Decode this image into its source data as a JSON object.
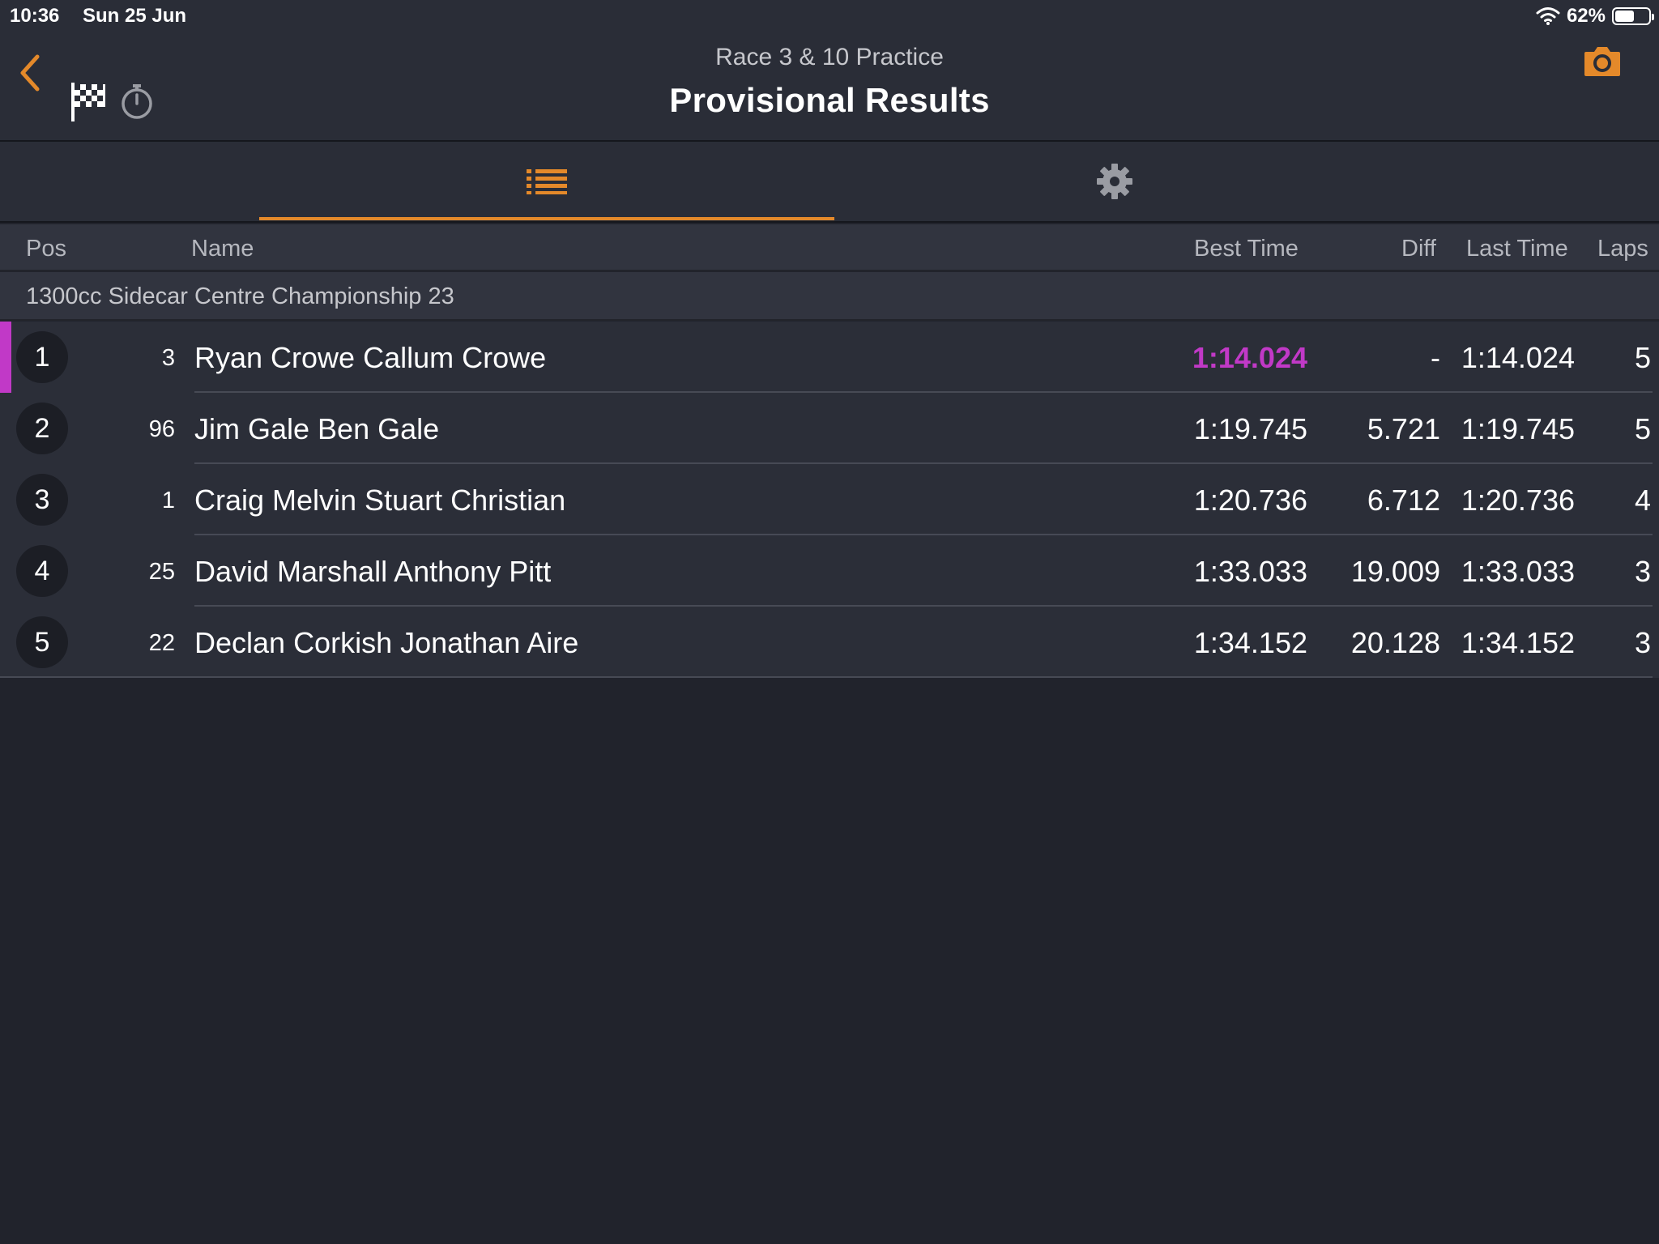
{
  "status": {
    "time": "10:36",
    "date": "Sun 25 Jun",
    "battery": "62%",
    "battery_level": 0.62
  },
  "nav": {
    "subtitle": "Race 3 & 10 Practice",
    "title": "Provisional Results"
  },
  "icons": {
    "back": "chevron-left-icon",
    "flag": "checkered-flag-icon",
    "stopwatch": "stopwatch-icon",
    "camera": "camera-icon",
    "list": "list-icon",
    "settings": "gear-icon"
  },
  "colors": {
    "accent": "#e4892a",
    "fastest": "#c139c7",
    "background": "#21232c",
    "panel": "#2a2d37"
  },
  "table": {
    "headers": {
      "pos": "Pos",
      "name": "Name",
      "best": "Best Time",
      "diff": "Diff",
      "last": "Last Time",
      "laps": "Laps"
    },
    "group": "1300cc Sidecar Centre Championship 23",
    "rows": [
      {
        "pos": "1",
        "number": "3",
        "name": "Ryan Crowe Callum Crowe",
        "best": "1:14.024",
        "diff": "-",
        "last": "1:14.024",
        "laps": "5"
      },
      {
        "pos": "2",
        "number": "96",
        "name": "Jim Gale Ben Gale",
        "best": "1:19.745",
        "diff": "5.721",
        "last": "1:19.745",
        "laps": "5"
      },
      {
        "pos": "3",
        "number": "1",
        "name": "Craig Melvin Stuart Christian",
        "best": "1:20.736",
        "diff": "6.712",
        "last": "1:20.736",
        "laps": "4"
      },
      {
        "pos": "4",
        "number": "25",
        "name": "David Marshall Anthony Pitt",
        "best": "1:33.033",
        "diff": "19.009",
        "last": "1:33.033",
        "laps": "3"
      },
      {
        "pos": "5",
        "number": "22",
        "name": "Declan Corkish Jonathan Aire",
        "best": "1:34.152",
        "diff": "20.128",
        "last": "1:34.152",
        "laps": "3"
      }
    ]
  }
}
